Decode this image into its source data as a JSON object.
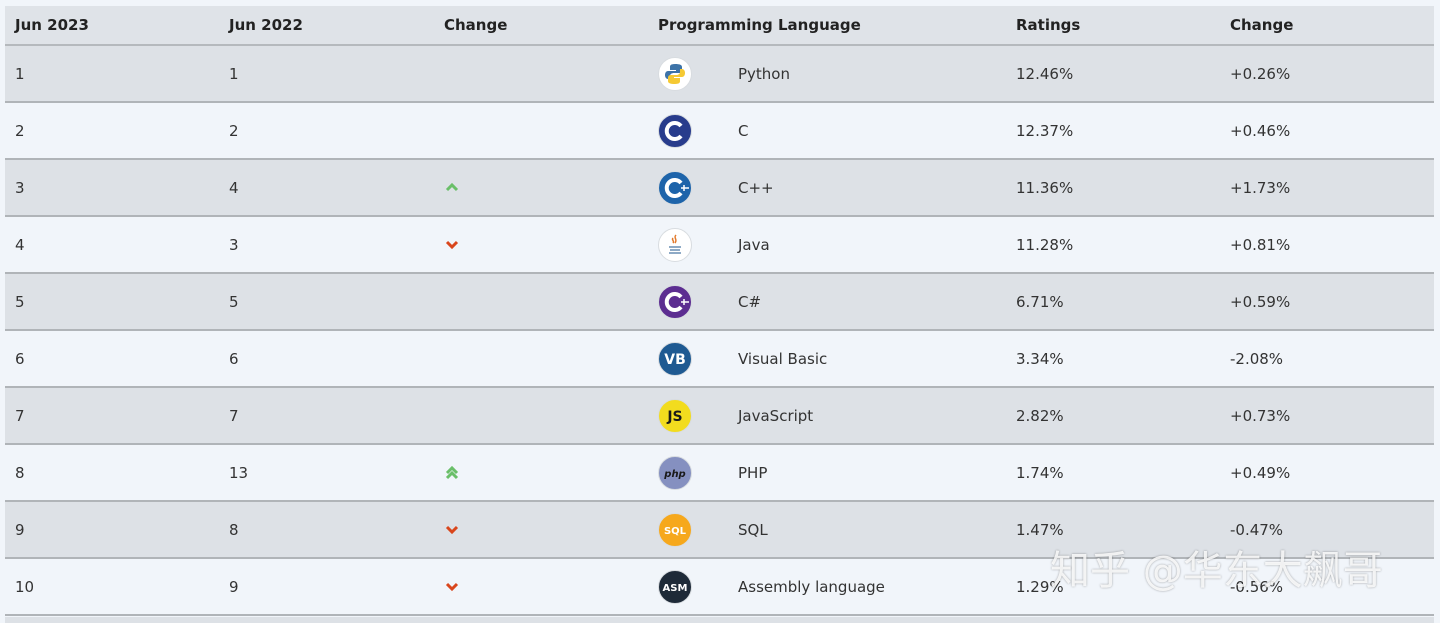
{
  "table": {
    "columns": [
      "Jun 2023",
      "Jun 2022",
      "Change",
      "Programming Language",
      "Ratings",
      "Change"
    ],
    "rows": [
      {
        "jun2023": "1",
        "jun2022": "1",
        "trend": null,
        "icon": {
          "kind": "python",
          "color": "#ffffff",
          "label": null
        },
        "language": "Python",
        "rating": "12.46%",
        "change": "+0.26%"
      },
      {
        "jun2023": "2",
        "jun2022": "2",
        "trend": null,
        "icon": {
          "kind": "c",
          "color": "#283c8c",
          "label": null
        },
        "language": "C",
        "rating": "12.37%",
        "change": "+0.46%"
      },
      {
        "jun2023": "3",
        "jun2022": "4",
        "trend": "up",
        "icon": {
          "kind": "cpp",
          "color": "#1e64aa",
          "label": null
        },
        "language": "C++",
        "rating": "11.36%",
        "change": "+1.73%"
      },
      {
        "jun2023": "4",
        "jun2022": "3",
        "trend": "down",
        "icon": {
          "kind": "java",
          "color": "#ffffff",
          "label": null
        },
        "language": "Java",
        "rating": "11.28%",
        "change": "+0.81%"
      },
      {
        "jun2023": "5",
        "jun2022": "5",
        "trend": null,
        "icon": {
          "kind": "csharp",
          "color": "#5c2d91",
          "label": null
        },
        "language": "C#",
        "rating": "6.71%",
        "change": "+0.59%"
      },
      {
        "jun2023": "6",
        "jun2022": "6",
        "trend": null,
        "icon": {
          "kind": "text",
          "color": "#1f5a92",
          "label": "VB"
        },
        "language": "Visual Basic",
        "rating": "3.34%",
        "change": "-2.08%"
      },
      {
        "jun2023": "7",
        "jun2022": "7",
        "trend": null,
        "icon": {
          "kind": "text",
          "color": "#f2dc1e",
          "label": "JS"
        },
        "language": "JavaScript",
        "rating": "2.82%",
        "change": "+0.73%"
      },
      {
        "jun2023": "8",
        "jun2022": "13",
        "trend": "up-double",
        "icon": {
          "kind": "text",
          "color": "#8590c0",
          "label": "php"
        },
        "language": "PHP",
        "rating": "1.74%",
        "change": "+0.49%"
      },
      {
        "jun2023": "9",
        "jun2022": "8",
        "trend": "down",
        "icon": {
          "kind": "text",
          "color": "#f6a81c",
          "label": "SQL"
        },
        "language": "SQL",
        "rating": "1.47%",
        "change": "-0.47%"
      },
      {
        "jun2023": "10",
        "jun2022": "9",
        "trend": "down",
        "icon": {
          "kind": "text",
          "color": "#1e2a38",
          "label": "ASM"
        },
        "language": "Assembly language",
        "rating": "1.29%",
        "change": "-0.56%"
      }
    ]
  },
  "watermark": "知乎 @华东大飙哥"
}
